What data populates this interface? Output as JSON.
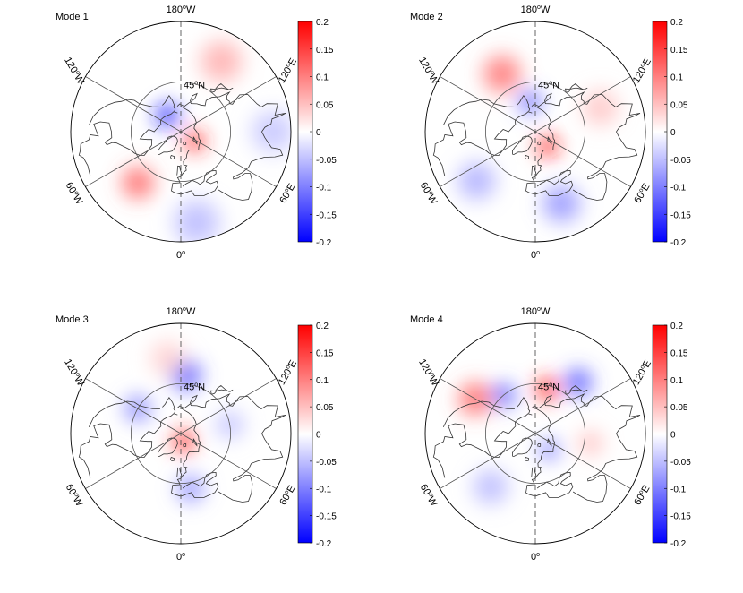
{
  "chart_data": [
    {
      "type": "heatmap",
      "projection": "north-polar-stereographic",
      "title": "Mode 1",
      "lat_circle_label": "45",
      "lat_circle_hemisphere": "N",
      "longitude_labels": [
        {
          "deg": "180",
          "dir": "W",
          "lon": 180
        },
        {
          "deg": "120",
          "dir": "E",
          "lon": 120
        },
        {
          "deg": "60",
          "dir": "E",
          "lon": 60
        },
        {
          "deg": "0",
          "dir": "",
          "lon": 0
        },
        {
          "deg": "60",
          "dir": "W",
          "lon": -60
        },
        {
          "deg": "120",
          "dir": "W",
          "lon": -120
        }
      ],
      "colorbar": {
        "min": -0.2,
        "max": 0.2,
        "ticks": [
          "0.2",
          "0.15",
          "0.1",
          "0.05",
          "0",
          "-0.05",
          "-0.1",
          "-0.15",
          "-0.2"
        ]
      },
      "anomalies": [
        {
          "lat": 70,
          "lon": -140,
          "value": -0.18,
          "spread_deg": 13
        },
        {
          "lat": 74,
          "lon": 55,
          "value": 0.17,
          "spread_deg": 12
        },
        {
          "lat": 32,
          "lon": -40,
          "value": 0.13,
          "spread_deg": 14
        },
        {
          "lat": 22,
          "lon": 150,
          "value": 0.07,
          "spread_deg": 16
        },
        {
          "lat": 15,
          "lon": 90,
          "value": -0.05,
          "spread_deg": 15
        },
        {
          "lat": 15,
          "lon": 10,
          "value": -0.06,
          "spread_deg": 16
        }
      ]
    },
    {
      "type": "heatmap",
      "projection": "north-polar-stereographic",
      "title": "Mode 2",
      "lat_circle_label": "45",
      "lat_circle_hemisphere": "N",
      "longitude_labels": [
        {
          "deg": "180",
          "dir": "W",
          "lon": 180
        },
        {
          "deg": "120",
          "dir": "E",
          "lon": 120
        },
        {
          "deg": "60",
          "dir": "E",
          "lon": 60
        },
        {
          "deg": "0",
          "dir": "",
          "lon": 0
        },
        {
          "deg": "60",
          "dir": "W",
          "lon": -60
        },
        {
          "deg": "120",
          "dir": "W",
          "lon": -120
        }
      ],
      "colorbar": {
        "min": -0.2,
        "max": 0.2,
        "ticks": [
          "0.2",
          "0.15",
          "0.1",
          "0.05",
          "0",
          "-0.05",
          "-0.1",
          "-0.15",
          "-0.2"
        ]
      },
      "anomalies": [
        {
          "lat": 72,
          "lon": 40,
          "value": 0.18,
          "spread_deg": 12
        },
        {
          "lat": 62,
          "lon": -170,
          "value": -0.12,
          "spread_deg": 13
        },
        {
          "lat": 32,
          "lon": -150,
          "value": 0.12,
          "spread_deg": 16
        },
        {
          "lat": 25,
          "lon": -50,
          "value": -0.07,
          "spread_deg": 15
        },
        {
          "lat": 25,
          "lon": 20,
          "value": -0.09,
          "spread_deg": 15
        },
        {
          "lat": 30,
          "lon": 110,
          "value": 0.05,
          "spread_deg": 15
        }
      ]
    },
    {
      "type": "heatmap",
      "projection": "north-polar-stereographic",
      "title": "Mode 3",
      "lat_circle_label": "45",
      "lat_circle_hemisphere": "N",
      "longitude_labels": [
        {
          "deg": "180",
          "dir": "W",
          "lon": 180
        },
        {
          "deg": "120",
          "dir": "E",
          "lon": 120
        },
        {
          "deg": "60",
          "dir": "E",
          "lon": 60
        },
        {
          "deg": "0",
          "dir": "",
          "lon": 0
        },
        {
          "deg": "60",
          "dir": "W",
          "lon": -60
        },
        {
          "deg": "120",
          "dir": "W",
          "lon": -120
        }
      ],
      "colorbar": {
        "min": -0.2,
        "max": 0.2,
        "ticks": [
          "0.2",
          "0.15",
          "0.1",
          "0.05",
          "0",
          "-0.05",
          "-0.1",
          "-0.15",
          "-0.2"
        ]
      },
      "anomalies": [
        {
          "lat": 82,
          "lon": 20,
          "value": 0.17,
          "spread_deg": 13
        },
        {
          "lat": 38,
          "lon": 175,
          "value": -0.14,
          "spread_deg": 14
        },
        {
          "lat": 45,
          "lon": -120,
          "value": -0.1,
          "spread_deg": 13
        },
        {
          "lat": 40,
          "lon": 10,
          "value": -0.09,
          "spread_deg": 13
        },
        {
          "lat": 45,
          "lon": 100,
          "value": -0.05,
          "spread_deg": 14
        },
        {
          "lat": 25,
          "lon": -170,
          "value": 0.04,
          "spread_deg": 14
        }
      ]
    },
    {
      "type": "heatmap",
      "projection": "north-polar-stereographic",
      "title": "Mode 4",
      "lat_circle_label": "45",
      "lat_circle_hemisphere": "N",
      "longitude_labels": [
        {
          "deg": "180",
          "dir": "W",
          "lon": 180
        },
        {
          "deg": "120",
          "dir": "E",
          "lon": 120
        },
        {
          "deg": "60",
          "dir": "E",
          "lon": 60
        },
        {
          "deg": "0",
          "dir": "",
          "lon": 0
        },
        {
          "deg": "60",
          "dir": "W",
          "lon": -60
        },
        {
          "deg": "120",
          "dir": "W",
          "lon": -120
        }
      ],
      "colorbar": {
        "min": -0.2,
        "max": 0.2,
        "ticks": [
          "0.2",
          "0.15",
          "0.1",
          "0.05",
          "0",
          "-0.05",
          "-0.1",
          "-0.15",
          "-0.2"
        ]
      },
      "anomalies": [
        {
          "lat": 48,
          "lon": 165,
          "value": 0.17,
          "spread_deg": 12
        },
        {
          "lat": 32,
          "lon": 140,
          "value": -0.14,
          "spread_deg": 12
        },
        {
          "lat": 45,
          "lon": -140,
          "value": -0.13,
          "spread_deg": 12
        },
        {
          "lat": 30,
          "lon": -120,
          "value": 0.13,
          "spread_deg": 14
        },
        {
          "lat": 70,
          "lon": 40,
          "value": -0.1,
          "spread_deg": 12
        },
        {
          "lat": 40,
          "lon": 80,
          "value": 0.05,
          "spread_deg": 12
        },
        {
          "lat": 30,
          "lon": -40,
          "value": -0.06,
          "spread_deg": 15
        }
      ]
    }
  ],
  "colors": {
    "positive": "#ff0000",
    "neutral": "#ffffff",
    "negative": "#0000ff",
    "axis": "#000000",
    "grid": "#555555",
    "coast": "#333333"
  }
}
